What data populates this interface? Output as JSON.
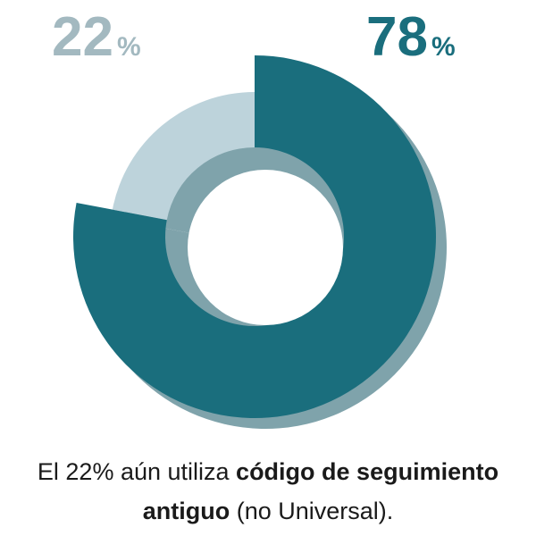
{
  "chart_data": {
    "type": "donut",
    "values": [
      22,
      78
    ],
    "value_labels": [
      "22%",
      "78%"
    ],
    "colors": [
      "#bdd3db",
      "#1a6e7d"
    ],
    "label_colors": [
      "#a3b9c0",
      "#1a6e7d"
    ],
    "shadow_color": "#7fa3ab",
    "highlight": 1,
    "caption": [
      {
        "text": "El 22% aún utiliza ",
        "bold": false
      },
      {
        "text": "código de seguimiento antiguo",
        "bold": true
      },
      {
        "text": " (no Universal).",
        "bold": false
      }
    ]
  }
}
